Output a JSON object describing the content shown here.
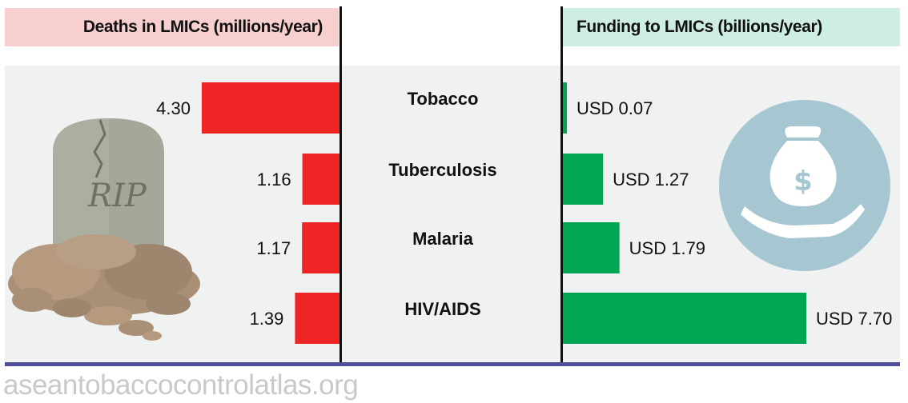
{
  "headers": {
    "deaths": "Deaths in LMICs (millions/year)",
    "funding": "Funding to LMICs (billions/year)"
  },
  "watermark": "aseantobaccocontrolatlas.org",
  "colors": {
    "deaths_bar": "#ee2524",
    "funding_bar": "#00a651",
    "deaths_header_bg": "#f7cfcf",
    "funding_header_bg": "#cdeee0",
    "accent_line": "#4f4f98",
    "icon_circle": "#a6c6d2"
  },
  "icons": {
    "left": "tombstone-rip-icon",
    "left_text": "RIP",
    "right": "money-bag-hand-icon"
  },
  "chart_data": [
    {
      "type": "bar",
      "orientation": "horizontal",
      "direction": "right-to-left",
      "title": "Deaths in LMICs (millions/year)",
      "categories": [
        "Tobacco",
        "Tuberculosis",
        "Malaria",
        "HIV/AIDS"
      ],
      "values": [
        4.3,
        1.16,
        1.17,
        1.39
      ],
      "value_labels": [
        "4.30",
        "1.16",
        "1.17",
        "1.39"
      ],
      "grid": false
    },
    {
      "type": "bar",
      "orientation": "horizontal",
      "direction": "left-to-right",
      "title": "Funding to LMICs (billions/year)",
      "categories": [
        "Tobacco",
        "Tuberculosis",
        "Malaria",
        "HIV/AIDS"
      ],
      "values": [
        0.07,
        1.27,
        1.79,
        7.7
      ],
      "value_labels": [
        "USD 0.07",
        "USD 1.27",
        "USD 1.79",
        "USD 7.70"
      ],
      "grid": false
    }
  ]
}
